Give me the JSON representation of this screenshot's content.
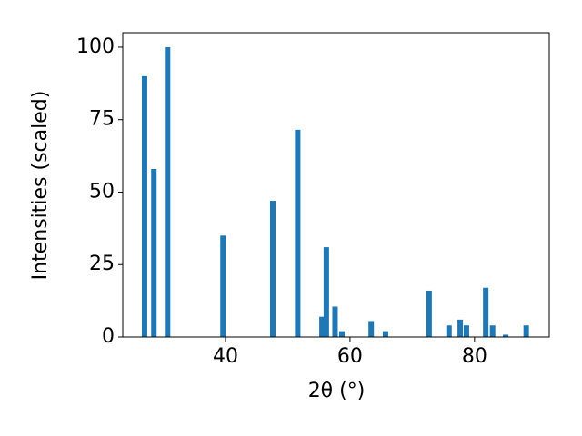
{
  "chart_data": {
    "type": "bar",
    "xlabel": "2θ (°)",
    "ylabel": "Intensities (scaled)",
    "x": [
      27.0,
      28.5,
      30.7,
      39.6,
      47.6,
      51.6,
      55.5,
      56.2,
      57.6,
      58.7,
      63.4,
      65.7,
      72.7,
      75.9,
      77.7,
      78.7,
      81.8,
      82.9,
      85.0,
      88.3
    ],
    "values": [
      90,
      58,
      100,
      35,
      47,
      71.5,
      7,
      31,
      10.5,
      2,
      5.5,
      2,
      16,
      4,
      6,
      4,
      17,
      4,
      0.8,
      4
    ],
    "color": "#1f77b4",
    "xlim": [
      23.5,
      92
    ],
    "xticks": [
      40,
      60,
      80
    ],
    "ylim": [
      0,
      105
    ],
    "yticks": [
      0,
      25,
      50,
      75,
      100
    ]
  }
}
